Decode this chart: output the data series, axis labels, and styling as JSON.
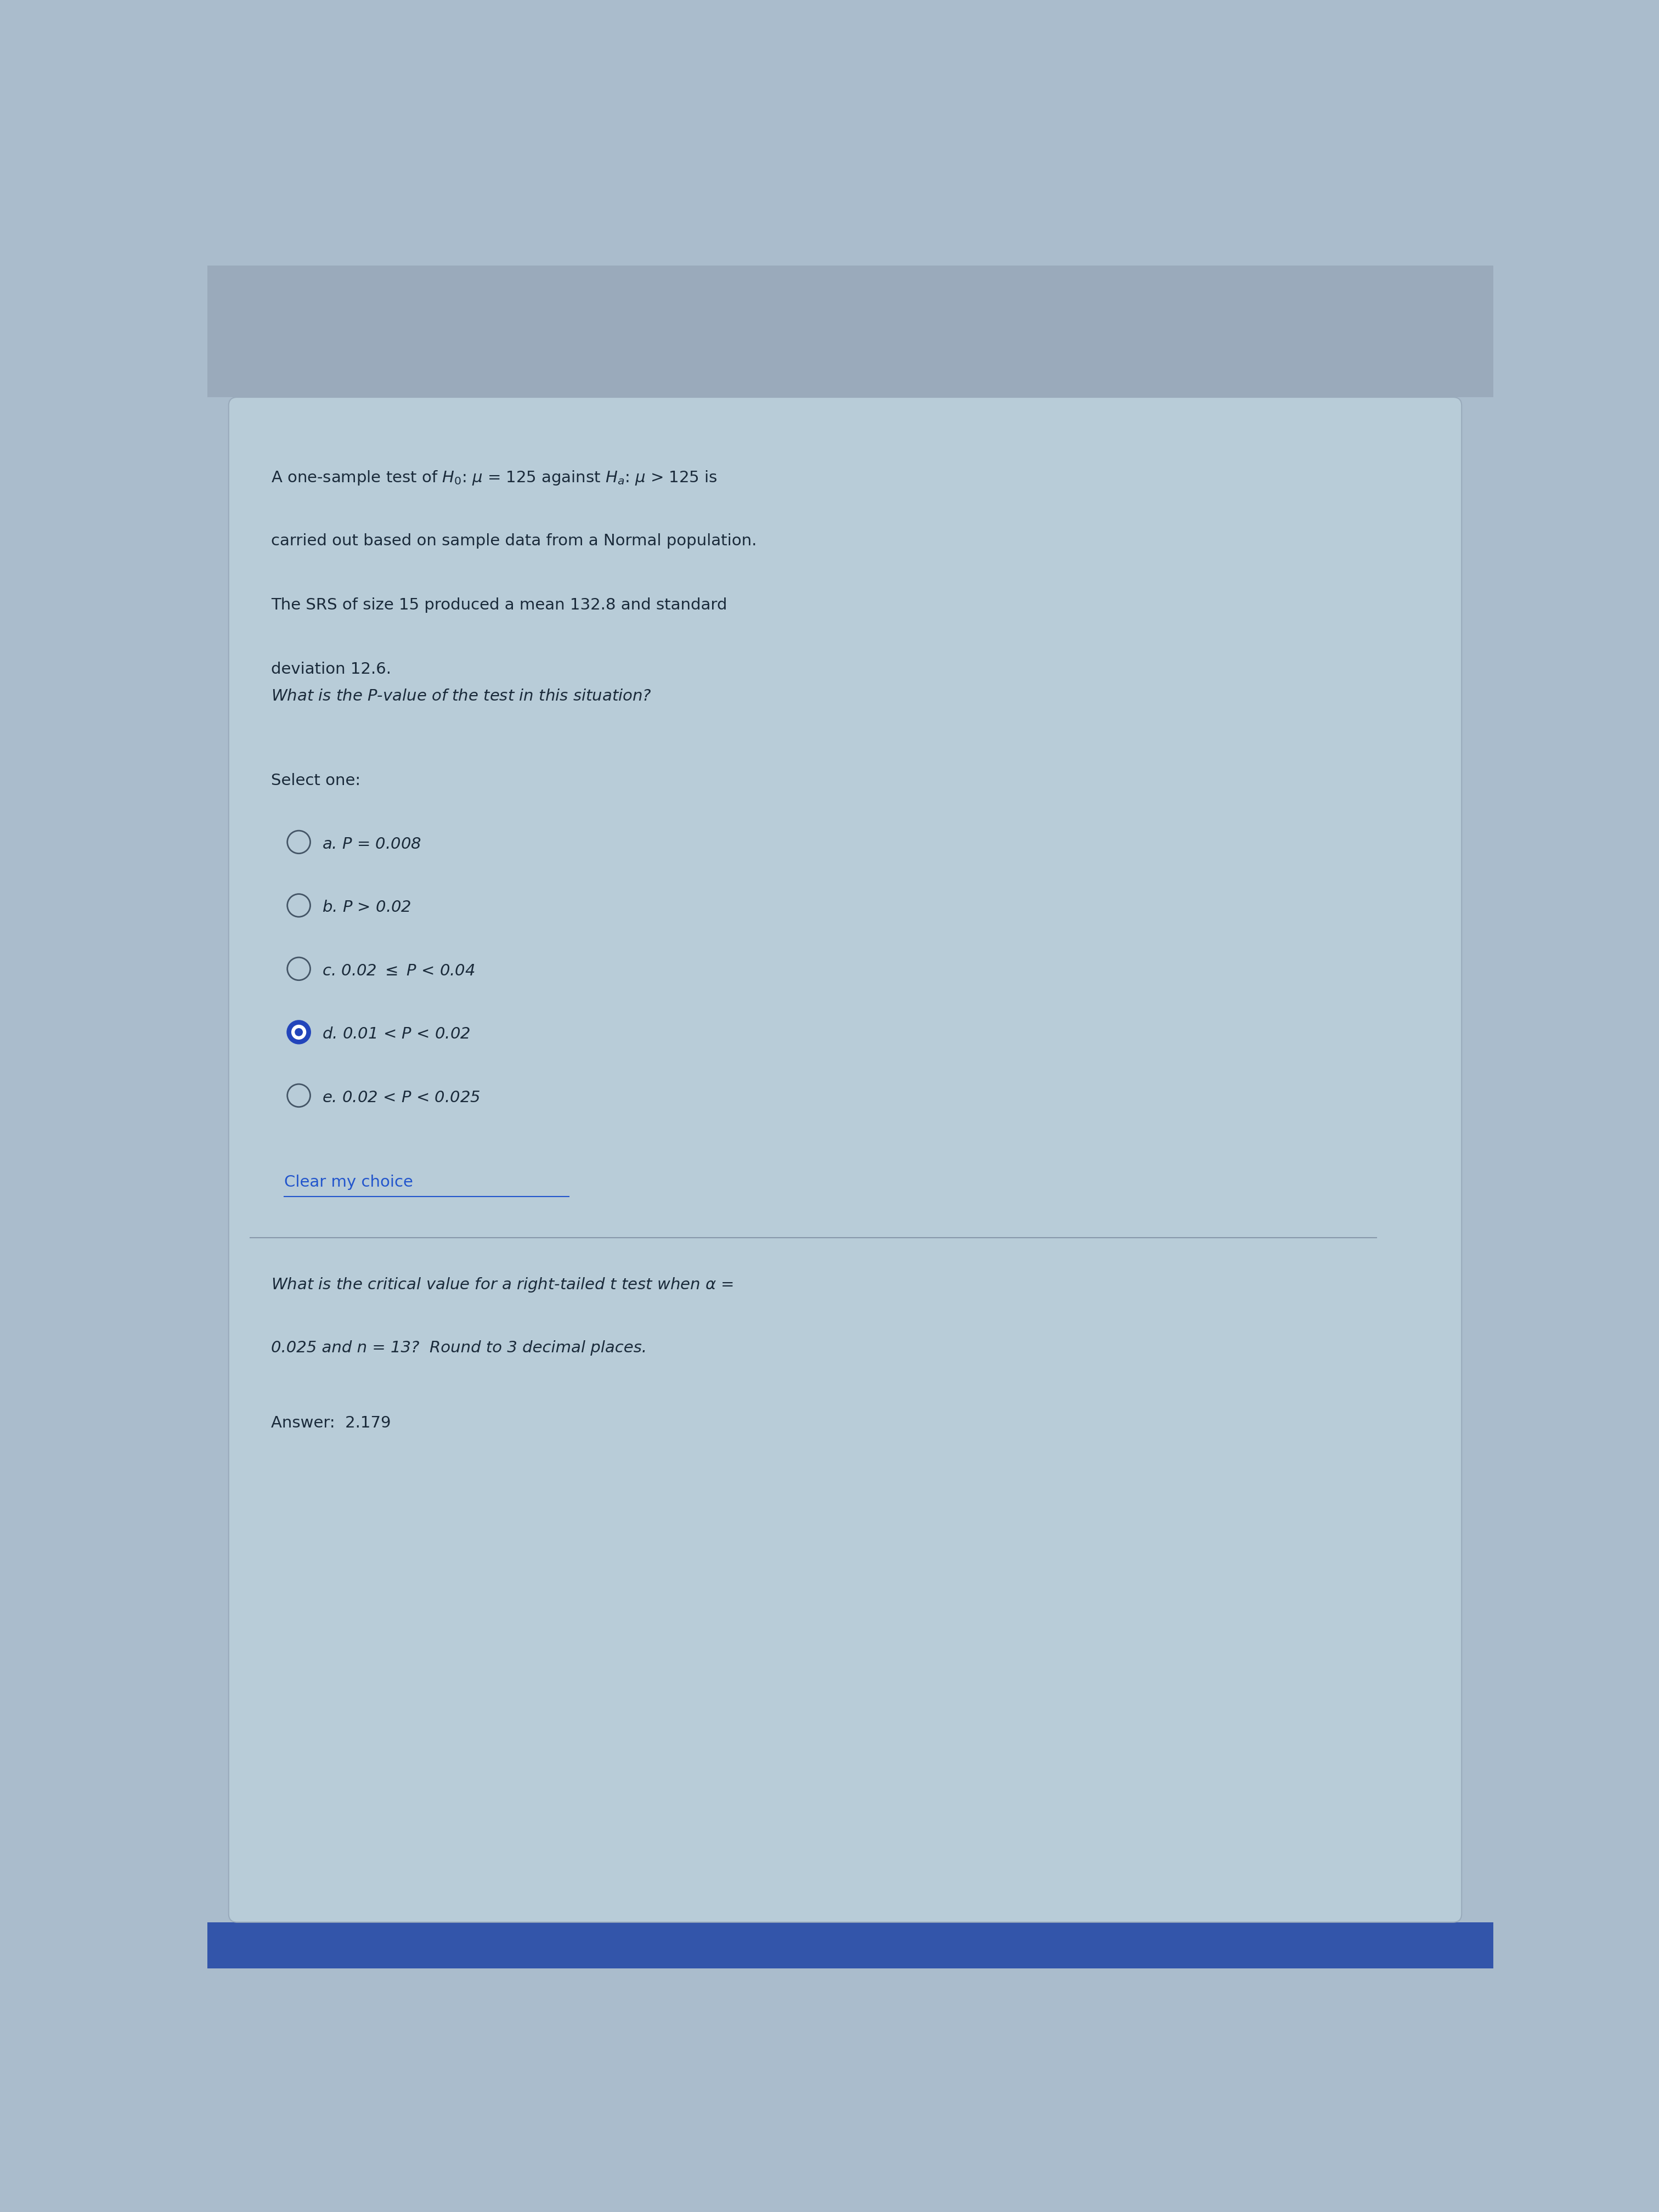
{
  "bg_top": "#9aaabb",
  "bg_main": "#aabccc",
  "card_color": "#b8ccd8",
  "bottom_bar": "#3355aa",
  "text_color": "#1a2a3a",
  "link_color": "#2255cc",
  "selected_color": "#2244bb",
  "circle_color": "#445566",
  "line1": "A one-sample test of $H_0$: $\\mu$ = 125 against $H_a$: $\\mu$ > 125 is",
  "line2": "carried out based on sample data from a Normal population.",
  "line3": "The SRS of size 15 produced a mean 132.8 and standard",
  "line4": "deviation 12.6.",
  "question1": "What is the $P$-value of the test in this situation?",
  "select_label": "Select one:",
  "options": [
    {
      "label": "a.",
      "display": "a. $P$ = 0.008",
      "selected": false
    },
    {
      "label": "b.",
      "display": "b. $P$ > 0.02",
      "selected": false
    },
    {
      "label": "c.",
      "display": "c. 0.02 $\\leq$ $P$ < 0.04",
      "selected": false
    },
    {
      "label": "d.",
      "display": "d. 0.01 < $P$ < 0.02",
      "selected": true
    },
    {
      "label": "e.",
      "display": "e. 0.02 < $P$ < 0.025",
      "selected": false
    }
  ],
  "clear_text": "Clear my choice",
  "question2_line1": "What is the critical value for a right-tailed $t$ test when $\\alpha$ =",
  "question2_line2": "0.025 and n = 13?  Round to 3 decimal places.",
  "answer_text": "Answer:  2.179"
}
